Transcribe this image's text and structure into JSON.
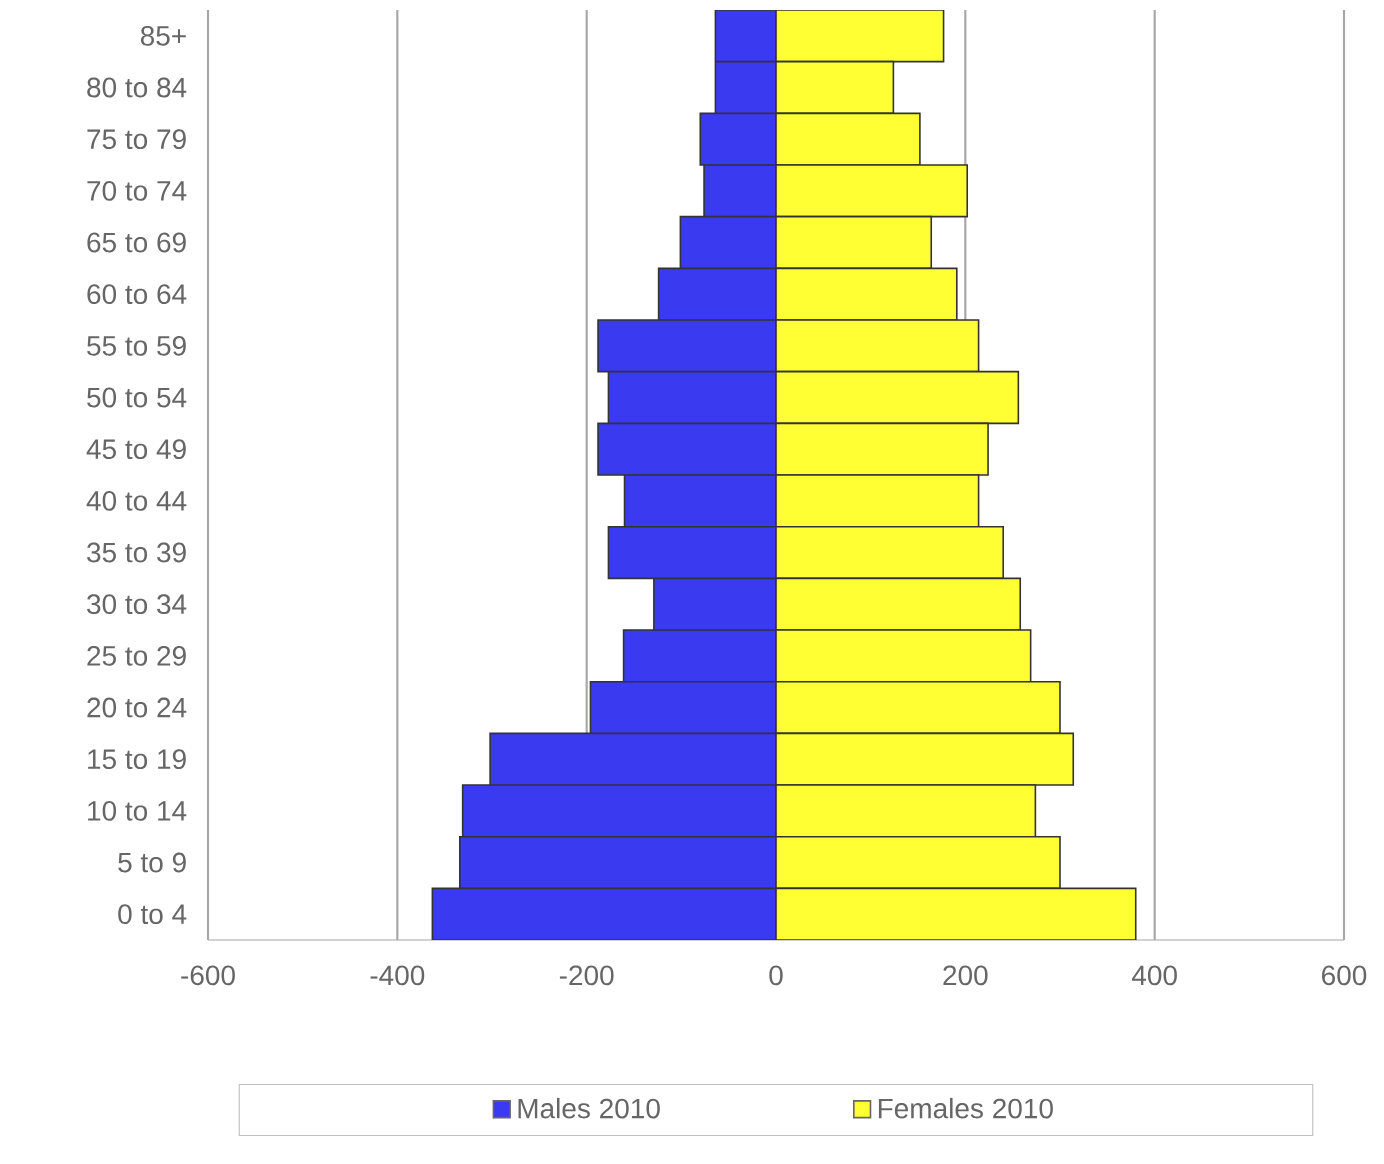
{
  "chart_data": {
    "type": "bar",
    "orientation": "horizontal",
    "categories": [
      "85+",
      "80 to 84",
      "75 to 79",
      "70 to 74",
      "65 to 69",
      "60 to 64",
      "55 to 59",
      "50 to 54",
      "45 to 49",
      "40 to 44",
      "35 to 39",
      "30 to 34",
      "25 to 29",
      "20 to 24",
      "15 to 19",
      "10 to 14",
      "5 to 9",
      "0 to 4"
    ],
    "series": [
      {
        "name": "Males 2010",
        "color": "#3a3af0",
        "values": [
          -64,
          -64,
          -80,
          -76,
          -101,
          -124,
          -188,
          -177,
          -188,
          -160,
          -177,
          -129,
          -161,
          -196,
          -302,
          -331,
          -334,
          -363
        ]
      },
      {
        "name": "Females 2010",
        "color": "#ffff33",
        "values": [
          177,
          124,
          152,
          202,
          164,
          191,
          214,
          256,
          224,
          214,
          240,
          258,
          269,
          300,
          314,
          274,
          300,
          380
        ]
      }
    ],
    "xlim": [
      -600,
      600
    ],
    "xticks": [
      -600,
      -400,
      -200,
      0,
      200,
      400,
      600
    ],
    "stacked": true,
    "grid": "x",
    "legend": "bottom"
  }
}
